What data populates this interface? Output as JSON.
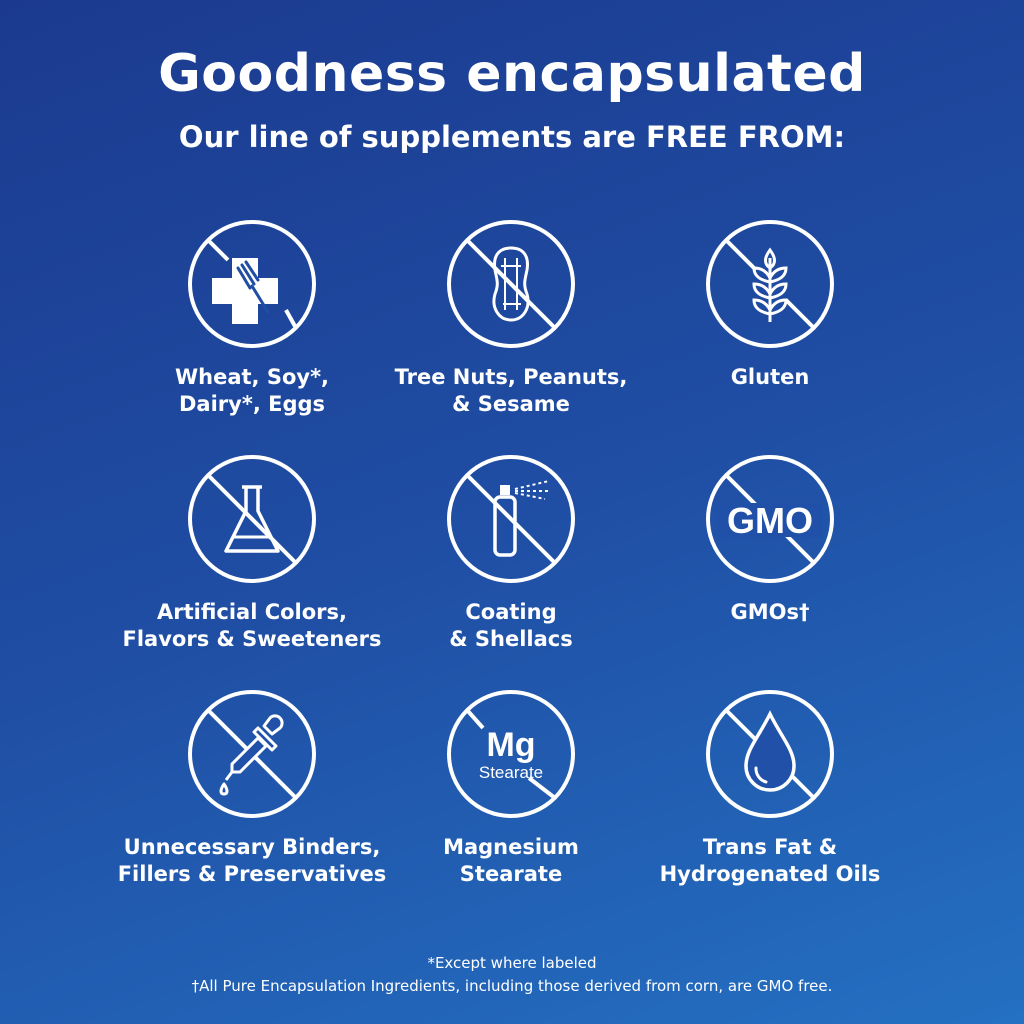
{
  "header": {
    "title": "Goodness encapsulated",
    "subtitle": "Our line of supplements are FREE FROM:"
  },
  "items": [
    {
      "icon": "allergen-cross-fork-icon",
      "label": "Wheat, Soy*,\nDairy*, Eggs"
    },
    {
      "icon": "peanut-icon",
      "label": "Tree Nuts, Peanuts,\n& Sesame"
    },
    {
      "icon": "wheat-grain-icon",
      "label": "Gluten"
    },
    {
      "icon": "flask-icon",
      "label": "Artificial Colors,\nFlavors & Sweeteners"
    },
    {
      "icon": "spray-can-icon",
      "label": "Coating\n& Shellacs"
    },
    {
      "icon": "gmo-icon",
      "label": "GMOs†",
      "icon_text": "GMO"
    },
    {
      "icon": "dropper-icon",
      "label": "Unnecessary Binders,\nFillers & Preservatives"
    },
    {
      "icon": "mg-stearate-icon",
      "label": "Magnesium\nStearate",
      "icon_text": "Mg",
      "icon_subtext": "Stearate"
    },
    {
      "icon": "oil-drop-icon",
      "label": "Trans Fat &\nHydrogenated Oils"
    }
  ],
  "footnotes": [
    "*Except where labeled",
    "†All Pure Encapsulation Ingredients, including those derived from corn, are GMO free."
  ],
  "colors": {
    "background_top": "#1b3a8f",
    "background_bottom": "#2470c2",
    "foreground": "#ffffff"
  }
}
